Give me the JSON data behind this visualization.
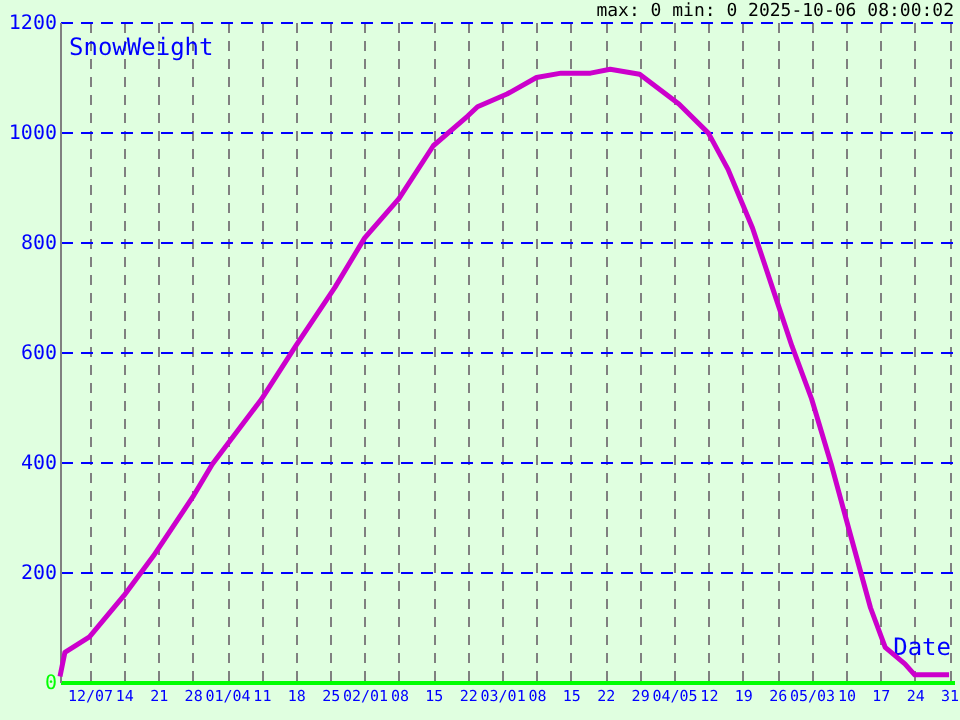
{
  "chart_data": {
    "type": "line",
    "xlabel": "Date",
    "ylabel": "SnowWeight",
    "annotations": [
      "max: 0  min: 0  2025-10-06 08:00:02"
    ],
    "x": [
      "2024-12-01",
      "2024-12-02",
      "2024-12-07",
      "2024-12-14",
      "2024-12-20",
      "2024-12-28",
      "2025-01-01",
      "2025-01-11",
      "2025-01-18",
      "2025-01-26",
      "2025-02-01",
      "2025-02-08",
      "2025-02-15",
      "2025-02-22",
      "2025-02-24",
      "2025-03-02",
      "2025-03-08",
      "2025-03-13",
      "2025-03-19",
      "2025-03-23",
      "2025-03-29",
      "2025-04-06",
      "2025-04-12",
      "2025-04-16",
      "2025-04-21",
      "2025-04-25",
      "2025-04-29",
      "2025-05-03",
      "2025-05-07",
      "2025-05-11",
      "2025-05-15",
      "2025-05-18",
      "2025-05-22",
      "2025-05-24",
      "2025-05-31"
    ],
    "series": [
      {
        "color": "#cc00cc",
        "values": [
          10,
          54,
          82,
          157,
          229,
          336,
          396,
          514,
          611,
          718,
          807,
          879,
          975,
          1029,
          1046,
          1069,
          1099,
          1107,
          1107,
          1114,
          1105,
          1051,
          998,
          932,
          825,
          718,
          611,
          515,
          396,
          265,
          135,
          63,
          33,
          13,
          13
        ]
      }
    ],
    "xlim": [
      "2024-12-01",
      "2025-06-01"
    ],
    "xticks": [
      {
        "value": "2024-12-07",
        "label": "12/07"
      },
      {
        "value": "2024-12-14",
        "label": "14"
      },
      {
        "value": "2024-12-21",
        "label": "21"
      },
      {
        "value": "2024-12-28",
        "label": "28"
      },
      {
        "value": "2025-01-04",
        "label": "01/04"
      },
      {
        "value": "2025-01-11",
        "label": "11"
      },
      {
        "value": "2025-01-18",
        "label": "18"
      },
      {
        "value": "2025-01-25",
        "label": "25"
      },
      {
        "value": "2025-02-01",
        "label": "02/01"
      },
      {
        "value": "2025-02-08",
        "label": "08"
      },
      {
        "value": "2025-02-15",
        "label": "15"
      },
      {
        "value": "2025-02-22",
        "label": "22"
      },
      {
        "value": "2025-03-01",
        "label": "03/01"
      },
      {
        "value": "2025-03-08",
        "label": "08"
      },
      {
        "value": "2025-03-15",
        "label": "15"
      },
      {
        "value": "2025-03-22",
        "label": "22"
      },
      {
        "value": "2025-03-29",
        "label": "29"
      },
      {
        "value": "2025-04-05",
        "label": "04/05"
      },
      {
        "value": "2025-04-12",
        "label": "12"
      },
      {
        "value": "2025-04-19",
        "label": "19"
      },
      {
        "value": "2025-04-26",
        "label": "26"
      },
      {
        "value": "2025-05-03",
        "label": "05/03"
      },
      {
        "value": "2025-05-10",
        "label": "10"
      },
      {
        "value": "2025-05-17",
        "label": "17"
      },
      {
        "value": "2025-05-24",
        "label": "24"
      },
      {
        "value": "2025-05-31",
        "label": "31"
      }
    ],
    "ylim": [
      0,
      1200
    ],
    "yticks": [
      0,
      200,
      400,
      600,
      800,
      1000,
      1200
    ],
    "grid": true,
    "marker": "none",
    "line_style": "solid"
  }
}
